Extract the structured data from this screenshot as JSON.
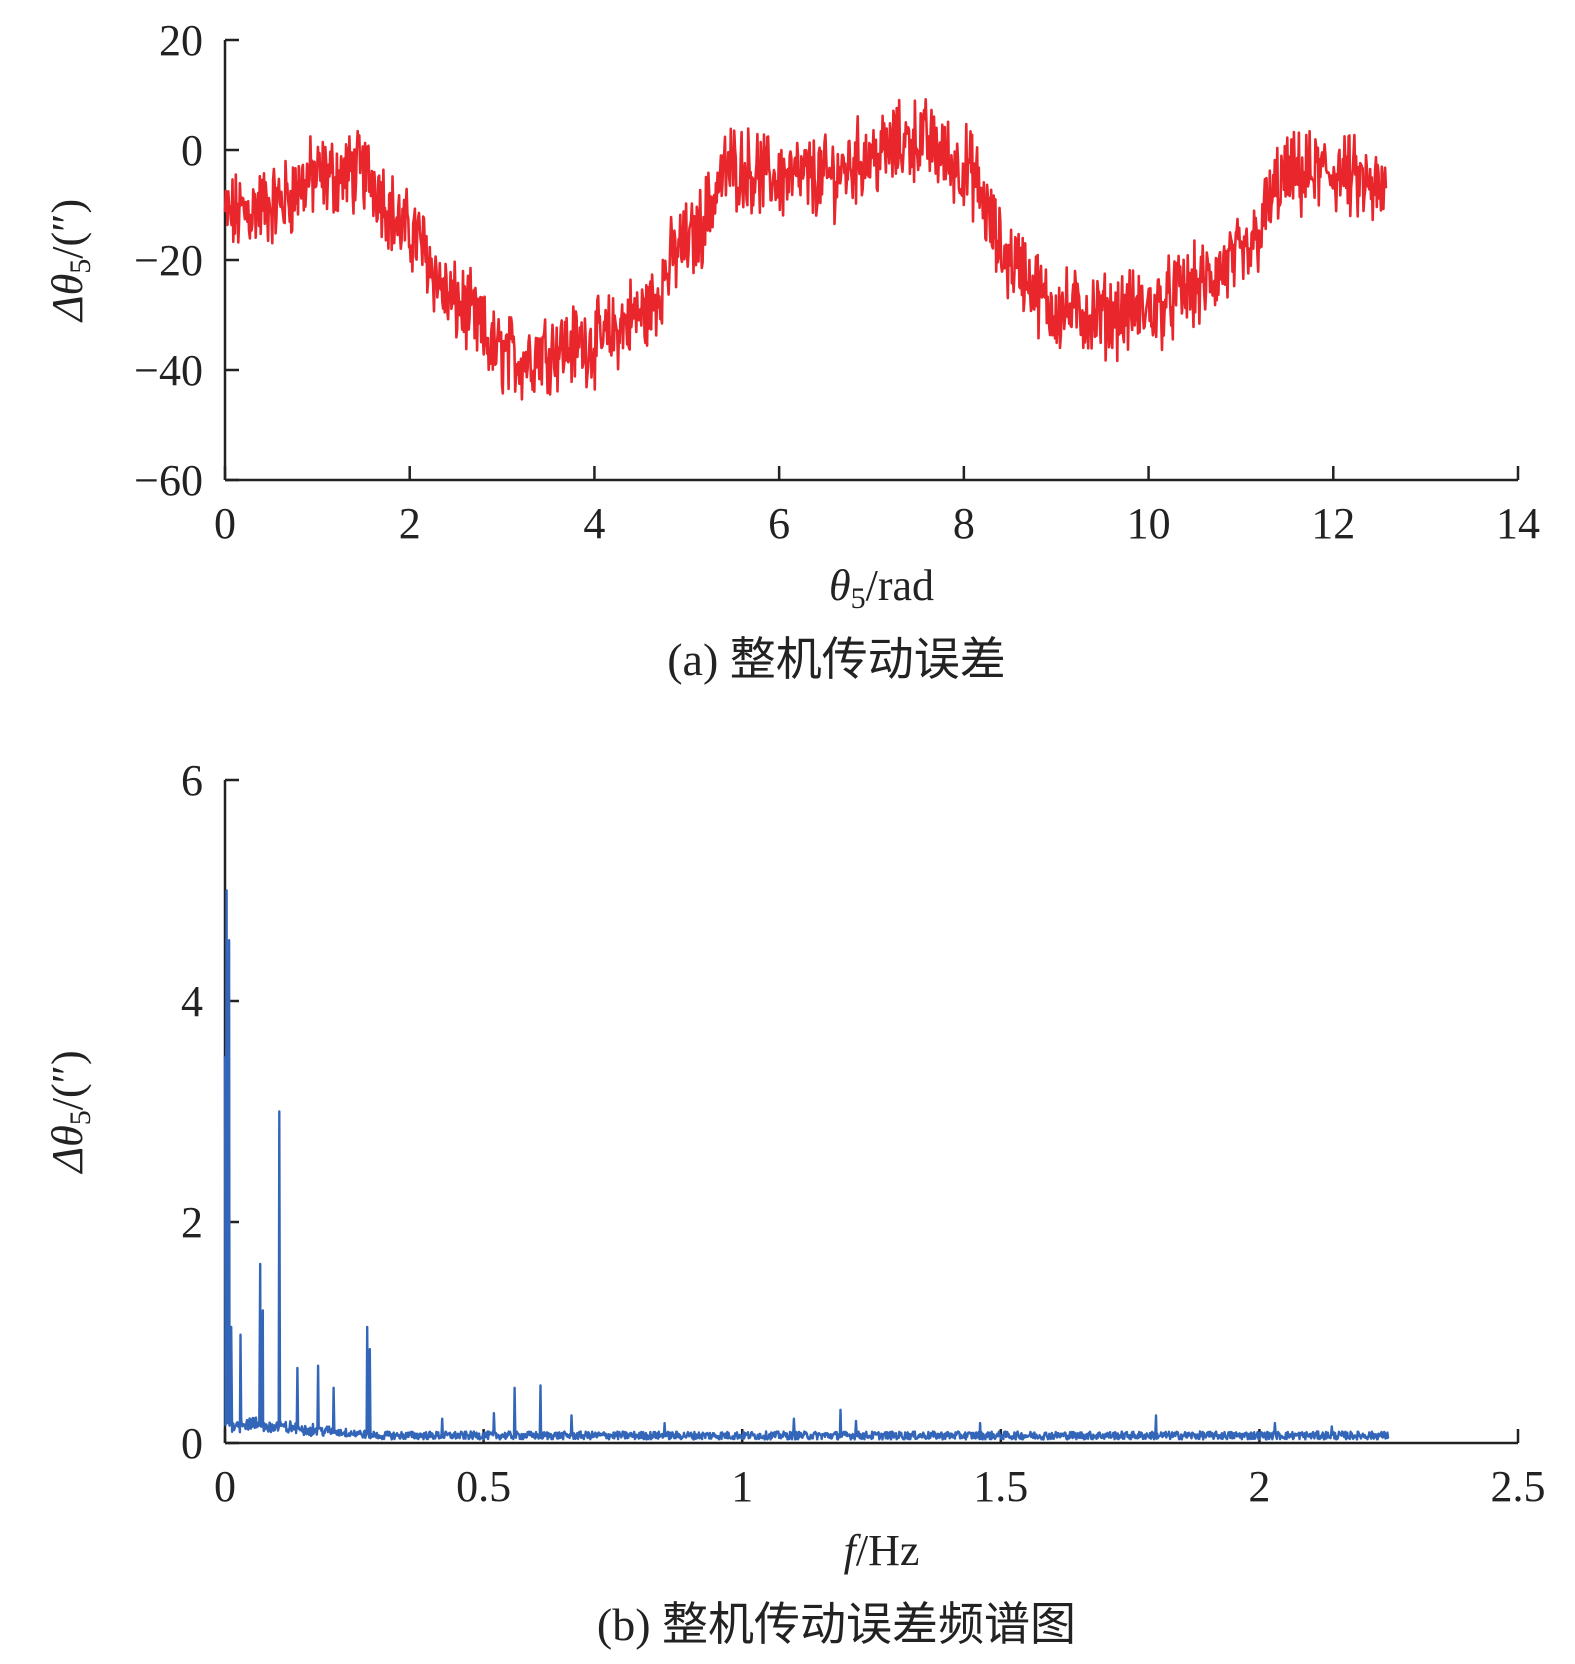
{
  "chart_data": [
    {
      "type": "line",
      "caption": "(a) 整机传动误差",
      "xlabel": {
        "main": "θ",
        "sub": "5",
        "rest": "/rad"
      },
      "ylabel": {
        "main": "Δθ",
        "sub": "5",
        "rest": "/(″)"
      },
      "xlim": [
        0,
        14
      ],
      "ylim": [
        -60,
        20
      ],
      "x_ticks": [
        0,
        2,
        4,
        6,
        8,
        10,
        12,
        14
      ],
      "y_ticks": [
        -60,
        -40,
        -20,
        0,
        20
      ],
      "x_tick_labels": [
        "0",
        "2",
        "4",
        "6",
        "8",
        "10",
        "12",
        "14"
      ],
      "y_tick_labels": [
        "−60",
        "−40",
        "−20",
        "0",
        "20"
      ],
      "grid": false,
      "series": [
        {
          "color": "#e8262b",
          "x": [
            0,
            0.5,
            1.0,
            1.5,
            2.0,
            2.5,
            3.0,
            3.2,
            3.5,
            4.0,
            4.5,
            5.0,
            5.5,
            6.0,
            6.5,
            7.0,
            7.5,
            8.0,
            8.5,
            9.0,
            9.5,
            10.0,
            10.5,
            11.0,
            11.5,
            12.0,
            12.57
          ],
          "y": [
            -12,
            -10,
            -5,
            -4,
            -15,
            -28,
            -37,
            -38,
            -36,
            -35,
            -30,
            -17,
            -3,
            -5,
            -5,
            -1,
            2,
            -3,
            -20,
            -29,
            -30,
            -29,
            -25,
            -20,
            -5,
            -4,
            -8
          ],
          "noise_amplitude": 6
        }
      ]
    },
    {
      "type": "line",
      "caption": "(b) 整机传动误差频谱图",
      "xlabel": {
        "main": "f",
        "sub": "",
        "rest": "/Hz"
      },
      "ylabel": {
        "main": "Δθ",
        "sub": "5",
        "rest": "/(″)"
      },
      "xlim": [
        0,
        2.5
      ],
      "ylim": [
        0,
        6
      ],
      "x_ticks": [
        0,
        0.5,
        1,
        1.5,
        2,
        2.5
      ],
      "y_ticks": [
        0,
        2,
        4,
        6
      ],
      "x_tick_labels": [
        "0",
        "0.5",
        "1",
        "1.5",
        "2",
        "2.5"
      ],
      "y_tick_labels": [
        "0",
        "2",
        "4",
        "6"
      ],
      "grid": false,
      "series": [
        {
          "color": "#3366b8",
          "x_max": 2.25,
          "baseline": 0.08,
          "peaks": [
            {
              "x": 0.0,
              "y": 3.5
            },
            {
              "x": 0.003,
              "y": 5.0
            },
            {
              "x": 0.008,
              "y": 4.55
            },
            {
              "x": 0.012,
              "y": 1.05
            },
            {
              "x": 0.03,
              "y": 0.98
            },
            {
              "x": 0.068,
              "y": 1.62
            },
            {
              "x": 0.073,
              "y": 1.2
            },
            {
              "x": 0.105,
              "y": 3.0
            },
            {
              "x": 0.14,
              "y": 0.68
            },
            {
              "x": 0.18,
              "y": 0.7
            },
            {
              "x": 0.21,
              "y": 0.5
            },
            {
              "x": 0.275,
              "y": 1.05
            },
            {
              "x": 0.28,
              "y": 0.85
            },
            {
              "x": 0.42,
              "y": 0.22
            },
            {
              "x": 0.52,
              "y": 0.27
            },
            {
              "x": 0.56,
              "y": 0.5
            },
            {
              "x": 0.61,
              "y": 0.52
            },
            {
              "x": 0.67,
              "y": 0.25
            },
            {
              "x": 0.85,
              "y": 0.18
            },
            {
              "x": 1.1,
              "y": 0.22
            },
            {
              "x": 1.19,
              "y": 0.3
            },
            {
              "x": 1.22,
              "y": 0.2
            },
            {
              "x": 1.46,
              "y": 0.18
            },
            {
              "x": 1.8,
              "y": 0.25
            },
            {
              "x": 2.03,
              "y": 0.18
            },
            {
              "x": 2.14,
              "y": 0.15
            }
          ]
        }
      ]
    }
  ]
}
